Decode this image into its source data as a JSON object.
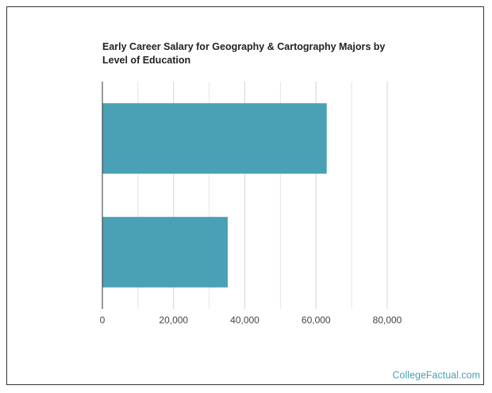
{
  "chart_data": {
    "type": "hbar",
    "title": "Early Career Salary for Geography & Cartography Majors by Level of Education",
    "categories": [
      null,
      null
    ],
    "values": [
      63000,
      35200
    ],
    "color": "#4aa0b5",
    "xlim": [
      0,
      80000
    ],
    "xticks": [
      0,
      {
        "value": 20000,
        "label": "20,000"
      },
      {
        "value": 40000,
        "label": "40,000"
      },
      {
        "value": 60000,
        "label": "60,000"
      },
      {
        "value": 80000,
        "label": "80,000"
      }
    ],
    "minor_grid": [
      10000,
      30000,
      50000,
      70000
    ],
    "grid": true,
    "watermark": "CollegeFactual.com"
  }
}
